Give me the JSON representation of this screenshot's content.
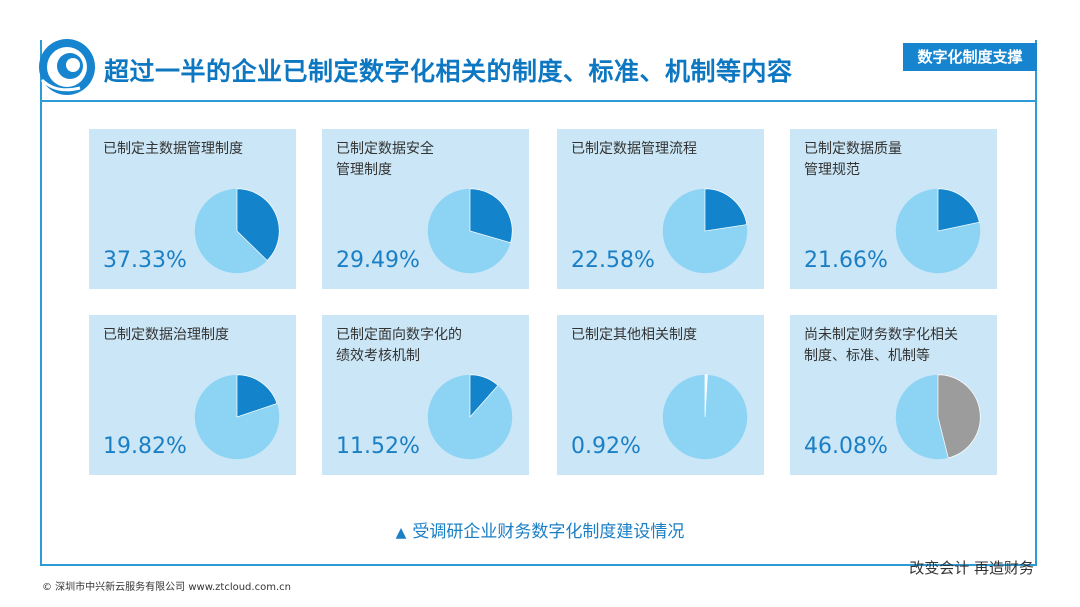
{
  "header": {
    "title": "超过一半的企业已制定数字化相关的制度、标准、机制等内容",
    "tag": "数字化制度支撑"
  },
  "colors": {
    "accent": "#1a84cf",
    "slice_light": "#8dd4f4",
    "slice_dark": "#1384cc",
    "slice_gray": "#9c9c9c",
    "card_bg": "#cbe7f7"
  },
  "chart_data": [
    {
      "type": "pie",
      "label_lines": [
        "已制定主数据管理制度"
      ],
      "value_label": "37.33%",
      "values": [
        37.33,
        62.67
      ],
      "highlight_color": "#1384cc"
    },
    {
      "type": "pie",
      "label_lines": [
        "已制定数据安全",
        "管理制度"
      ],
      "value_label": "29.49%",
      "values": [
        29.49,
        70.51
      ],
      "highlight_color": "#1384cc"
    },
    {
      "type": "pie",
      "label_lines": [
        "已制定数据管理流程"
      ],
      "value_label": "22.58%",
      "values": [
        22.58,
        77.42
      ],
      "highlight_color": "#1384cc"
    },
    {
      "type": "pie",
      "label_lines": [
        "已制定数据质量",
        "管理规范"
      ],
      "value_label": "21.66%",
      "values": [
        21.66,
        78.34
      ],
      "highlight_color": "#1384cc"
    },
    {
      "type": "pie",
      "label_lines": [
        "已制定数据治理制度"
      ],
      "value_label": "19.82%",
      "values": [
        19.82,
        80.18
      ],
      "highlight_color": "#1384cc"
    },
    {
      "type": "pie",
      "label_lines": [
        "已制定面向数字化的",
        "绩效考核机制"
      ],
      "value_label": "11.52%",
      "values": [
        11.52,
        88.48
      ],
      "highlight_color": "#1384cc"
    },
    {
      "type": "pie",
      "label_lines": [
        "已制定其他相关制度"
      ],
      "value_label": "0.92%",
      "values": [
        0.92,
        99.08
      ],
      "highlight_color": "#f2fbff"
    },
    {
      "type": "pie",
      "label_lines": [
        "尚未制定财务数字化相关",
        "制度、标准、机制等"
      ],
      "value_label": "46.08%",
      "values": [
        46.08,
        53.92
      ],
      "highlight_color": "#9c9c9c"
    }
  ],
  "caption": {
    "marker": "▲",
    "text": "受调研企业财务数字化制度建设情况"
  },
  "slogan": "改变会计  再造财务",
  "footer": "© 深圳市中兴新云服务有限公司    www.ztcloud.com.cn"
}
